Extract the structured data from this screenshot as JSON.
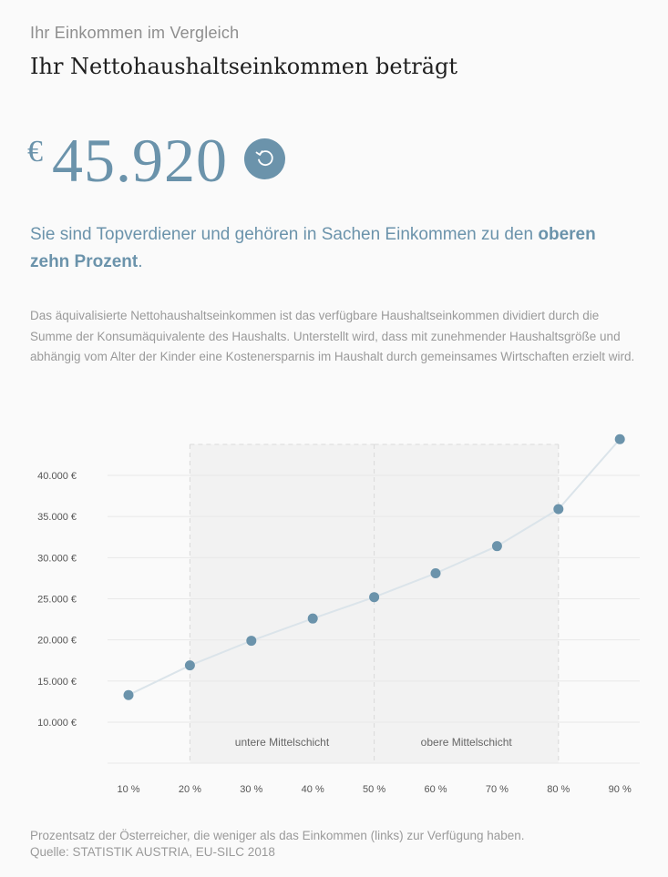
{
  "header": {
    "kicker": "Ihr Einkommen im Vergleich",
    "headline": "Ihr Nettohaushaltseinkommen beträgt"
  },
  "amount": {
    "currency": "€",
    "value": "45.920",
    "reset_icon": "reset-icon"
  },
  "result": {
    "lead": "Sie sind Topverdiener und gehören in Sachen Einkommen zu den ",
    "highlight": "oberen zehn Prozent",
    "tail": "."
  },
  "description": "Das äquivalisierte Nettohaushaltseinkommen ist das verfügbare Haushaltseinkommen dividiert durch die Summe der Konsumäquivalente des Haushalts. Unterstellt wird, dass mit zunehmender Haushaltsgröße und abhängig vom Alter der Kinder eine Kostenersparnis im Haushalt durch gemeinsames Wirtschaften erzielt wird.",
  "colors": {
    "accent": "#6b93ab",
    "line": "#dbe4ea",
    "band": "#f2f2f2",
    "grid": "#e8e8e8"
  },
  "chart_data": {
    "type": "line",
    "x": [
      "10 %",
      "20 %",
      "30 %",
      "40 %",
      "50 %",
      "60 %",
      "70 %",
      "80 %",
      "90 %"
    ],
    "values": [
      13300,
      16900,
      19900,
      22600,
      25200,
      28100,
      31400,
      35900,
      44400
    ],
    "y_ticks": [
      10000,
      15000,
      20000,
      25000,
      30000,
      35000,
      40000
    ],
    "y_tick_labels": [
      "10.000 €",
      "15.000 €",
      "20.000 €",
      "25.000 €",
      "30.000 €",
      "35.000 €",
      "40.000 €"
    ],
    "ylim": [
      10000,
      40000
    ],
    "grid": true,
    "bands": [
      {
        "label": "untere Mittelschicht",
        "from": 1,
        "to": 4
      },
      {
        "label": "obere Mittelschicht",
        "from": 4,
        "to": 7
      }
    ]
  },
  "footer": {
    "note": "Prozentsatz der Österreicher, die weniger als das Einkommen (links) zur Verfügung haben.",
    "source": "Quelle: STATISTIK AUSTRIA, EU-SILC 2018"
  }
}
